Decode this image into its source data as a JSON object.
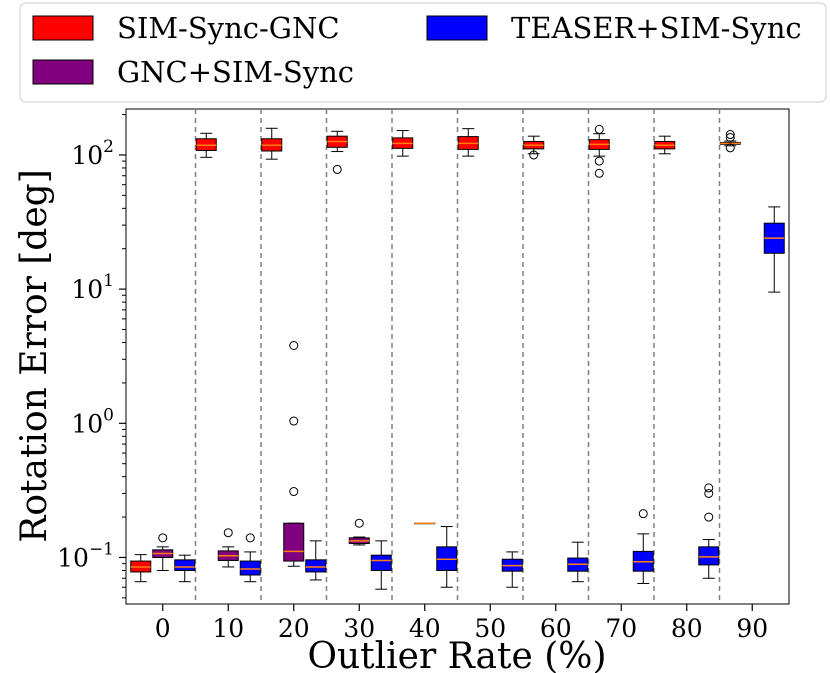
{
  "chart_data": {
    "type": "box",
    "xlabel": "Outlier Rate (%)",
    "ylabel": "Rotation Error [deg]",
    "yscale": "log",
    "ylim": [
      0.045,
      220
    ],
    "y_ticks": [
      {
        "value": 0.1,
        "base": "10",
        "exp": "−1"
      },
      {
        "value": 1,
        "base": "10",
        "exp": "0"
      },
      {
        "value": 10,
        "base": "10",
        "exp": "1"
      },
      {
        "value": 100,
        "base": "10",
        "exp": "2"
      }
    ],
    "categories": [
      "0",
      "10",
      "20",
      "30",
      "40",
      "50",
      "60",
      "70",
      "80",
      "90"
    ],
    "legend": {
      "position": "top",
      "entries": [
        {
          "label": "SIM-Sync-GNC",
          "color": "#ff0000"
        },
        {
          "label": "GNC+SIM-Sync",
          "color": "#800080"
        },
        {
          "label": "TEASER+SIM-Sync",
          "color": "#0000ff"
        }
      ]
    },
    "median_color": "#ff7f0e",
    "series": [
      {
        "name": "SIM-Sync-GNC",
        "color": "#ff0000",
        "boxes": [
          {
            "cat": 0,
            "wlo": 0.066,
            "q1": 0.078,
            "med": 0.085,
            "q3": 0.094,
            "whi": 0.105,
            "fliers": []
          },
          {
            "cat": 1,
            "wlo": 96,
            "q1": 108,
            "med": 118,
            "q3": 132,
            "whi": 145,
            "fliers": []
          },
          {
            "cat": 2,
            "wlo": 93,
            "q1": 107,
            "med": 118,
            "q3": 132,
            "whi": 158,
            "fliers": []
          },
          {
            "cat": 3,
            "wlo": 106,
            "q1": 114,
            "med": 126,
            "q3": 138,
            "whi": 150,
            "fliers": [
              78
            ]
          },
          {
            "cat": 4,
            "wlo": 98,
            "q1": 112,
            "med": 122,
            "q3": 134,
            "whi": 152,
            "fliers": []
          },
          {
            "cat": 5,
            "wlo": 98,
            "q1": 110,
            "med": 122,
            "q3": 137,
            "whi": 157,
            "fliers": []
          },
          {
            "cat": 6,
            "wlo": 102,
            "q1": 111,
            "med": 118,
            "q3": 126,
            "whi": 138,
            "fliers": [
              100
            ]
          },
          {
            "cat": 7,
            "wlo": 98,
            "q1": 110,
            "med": 120,
            "q3": 130,
            "whi": 144,
            "fliers": [
              155,
              90,
              73
            ]
          },
          {
            "cat": 8,
            "wlo": 102,
            "q1": 111,
            "med": 118,
            "q3": 126,
            "whi": 138,
            "fliers": []
          },
          {
            "cat": 9,
            "wlo": 117,
            "q1": 120,
            "med": 122,
            "q3": 124,
            "whi": 127,
            "fliers": [
              142,
              135,
              113
            ]
          }
        ]
      },
      {
        "name": "GNC+SIM-Sync",
        "color": "#800080",
        "boxes": [
          {
            "cat": 0,
            "wlo": 0.08,
            "q1": 0.1,
            "med": 0.107,
            "q3": 0.114,
            "whi": 0.12,
            "fliers": [
              0.14
            ]
          },
          {
            "cat": 1,
            "wlo": 0.085,
            "q1": 0.095,
            "med": 0.103,
            "q3": 0.112,
            "whi": 0.12,
            "fliers": [
              0.153
            ]
          },
          {
            "cat": 2,
            "wlo": 0.086,
            "q1": 0.094,
            "med": 0.111,
            "q3": 0.18,
            "whi": 0.18,
            "fliers": [
              3.8,
              1.04,
              0.31
            ]
          },
          {
            "cat": 3,
            "wlo": 0.124,
            "q1": 0.127,
            "med": 0.133,
            "q3": 0.14,
            "whi": 0.142,
            "fliers": [
              0.18
            ]
          },
          {
            "cat": 4,
            "wlo": 0.18,
            "q1": 0.18,
            "med": 0.18,
            "q3": 0.18,
            "whi": 0.18,
            "fliers": []
          }
        ]
      },
      {
        "name": "TEASER+SIM-Sync",
        "color": "#0000ff",
        "boxes": [
          {
            "cat": 0,
            "wlo": 0.066,
            "q1": 0.08,
            "med": 0.085,
            "q3": 0.096,
            "whi": 0.104,
            "fliers": []
          },
          {
            "cat": 1,
            "wlo": 0.066,
            "q1": 0.074,
            "med": 0.082,
            "q3": 0.094,
            "whi": 0.11,
            "fliers": [
              0.14
            ]
          },
          {
            "cat": 2,
            "wlo": 0.068,
            "q1": 0.078,
            "med": 0.085,
            "q3": 0.096,
            "whi": 0.133,
            "fliers": []
          },
          {
            "cat": 3,
            "wlo": 0.058,
            "q1": 0.08,
            "med": 0.095,
            "q3": 0.104,
            "whi": 0.133,
            "fliers": []
          },
          {
            "cat": 4,
            "wlo": 0.06,
            "q1": 0.08,
            "med": 0.097,
            "q3": 0.12,
            "whi": 0.17,
            "fliers": []
          },
          {
            "cat": 5,
            "wlo": 0.06,
            "q1": 0.079,
            "med": 0.087,
            "q3": 0.097,
            "whi": 0.11,
            "fliers": []
          },
          {
            "cat": 6,
            "wlo": 0.066,
            "q1": 0.079,
            "med": 0.089,
            "q3": 0.099,
            "whi": 0.13,
            "fliers": []
          },
          {
            "cat": 7,
            "wlo": 0.064,
            "q1": 0.079,
            "med": 0.093,
            "q3": 0.111,
            "whi": 0.15,
            "fliers": [
              0.212
            ]
          },
          {
            "cat": 8,
            "wlo": 0.07,
            "q1": 0.088,
            "med": 0.101,
            "q3": 0.12,
            "whi": 0.136,
            "fliers": [
              0.33,
              0.3,
              0.2
            ]
          },
          {
            "cat": 9,
            "wlo": 9.5,
            "q1": 18.5,
            "med": 24,
            "q3": 31,
            "whi": 41,
            "fliers": []
          }
        ]
      }
    ]
  }
}
